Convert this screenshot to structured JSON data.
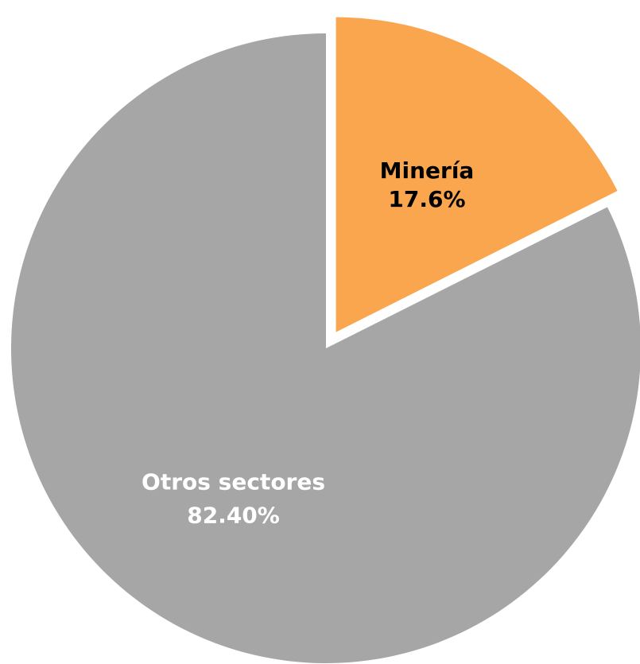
{
  "chart_data": {
    "type": "pie",
    "start_angle_deg": 0,
    "direction": "clockwise",
    "slices": [
      {
        "name": "Minería",
        "value": 17.6,
        "value_label": "17.6%",
        "color": "#F9A64F",
        "label_color": "#000000",
        "exploded": true
      },
      {
        "name": "Otros sectores",
        "value": 82.4,
        "value_label": "82.40%",
        "color": "#A6A6A6",
        "label_color": "#FFFFFF",
        "exploded": false
      }
    ]
  }
}
